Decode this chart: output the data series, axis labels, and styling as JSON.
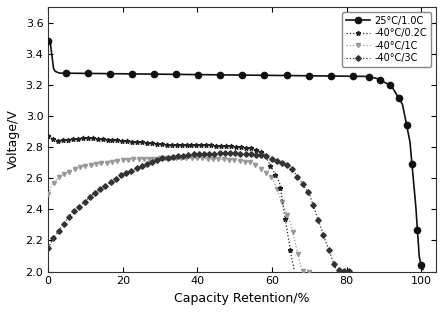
{
  "title": "",
  "xlabel": "Capacity Retention/%",
  "ylabel": "Voltage/V",
  "xlim": [
    0,
    104
  ],
  "ylim": [
    2.0,
    3.7
  ],
  "yticks": [
    2.0,
    2.2,
    2.4,
    2.6,
    2.8,
    3.0,
    3.2,
    3.4,
    3.6
  ],
  "xticks": [
    0,
    20,
    40,
    60,
    80,
    100
  ],
  "legend_entries": [
    "25°C/1.0C",
    "-40°C/0.2C",
    "-40°C/1C",
    "-40°C/3C"
  ],
  "background_color": "#ffffff"
}
